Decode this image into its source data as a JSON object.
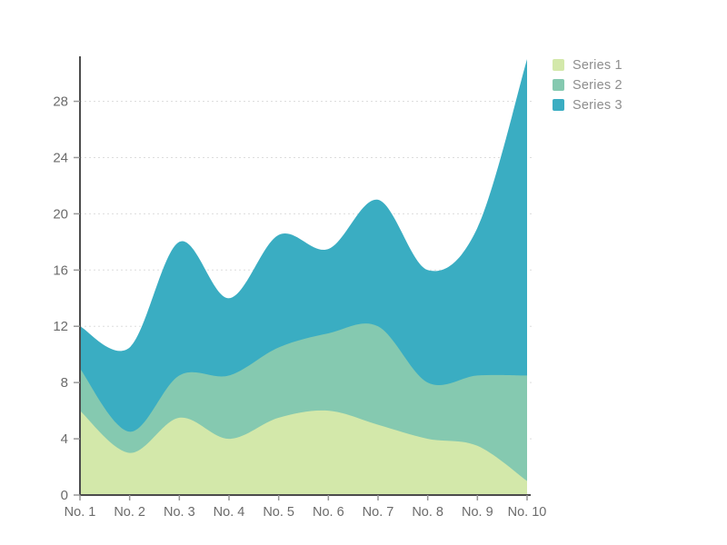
{
  "chart_data": {
    "type": "area",
    "stacked": true,
    "smooth": true,
    "categories": [
      "No. 1",
      "No. 2",
      "No. 3",
      "No. 4",
      "No. 5",
      "No. 6",
      "No. 7",
      "No. 8",
      "No. 9",
      "No. 10"
    ],
    "series": [
      {
        "name": "Series 1",
        "color": "#d3e8aa",
        "values": [
          6,
          3,
          5.5,
          4,
          5.5,
          6,
          5,
          4,
          3.5,
          1
        ]
      },
      {
        "name": "Series 2",
        "color": "#85c9b0",
        "values": [
          3,
          1.5,
          3,
          4.5,
          5,
          5.5,
          7,
          4,
          5,
          7.5
        ]
      },
      {
        "name": "Series 3",
        "color": "#3aadc2",
        "values": [
          3,
          6,
          9.5,
          5.5,
          8,
          6,
          9,
          8,
          10.5,
          22.5
        ]
      }
    ],
    "yticks": [
      0,
      4,
      8,
      12,
      16,
      20,
      24,
      28
    ],
    "ylim": [
      0,
      31.2
    ],
    "grid": "horizontal-dashed",
    "legend_position": "top-right",
    "colors": {
      "background": "#ffffff",
      "axis_line": "#4c4c4c",
      "tick_mark": "#999999",
      "grid_line": "#dddddd",
      "axis_label": "#6b6b6b",
      "legend_text": "#8e8e8e"
    }
  }
}
